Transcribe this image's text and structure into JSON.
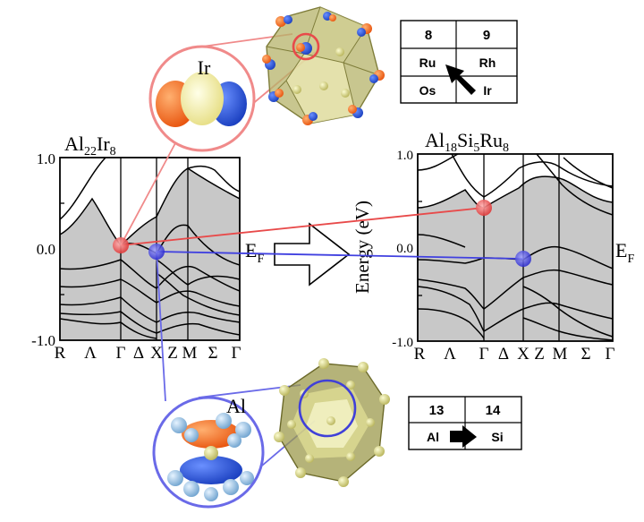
{
  "left_panel": {
    "title_main": "Al",
    "title_sub1": "22",
    "title_mid": "Ir",
    "title_sub2": "8",
    "y_ticks": [
      "1.0",
      "0.0",
      "-1.0"
    ],
    "k_labels": [
      "R",
      "Λ",
      "Γ",
      "Δ",
      "X",
      "Z",
      "M",
      "Σ",
      "Γ"
    ]
  },
  "right_panel": {
    "title_a": "Al",
    "title_a_sub": "18",
    "title_b": "Si",
    "title_b_sub": "5",
    "title_c": "Ru",
    "title_c_sub": "8",
    "y_ticks": [
      "1.0",
      "0.0",
      "-1.0"
    ],
    "k_labels": [
      "R",
      "Λ",
      "Γ",
      "Δ",
      "X",
      "Z",
      "M",
      "Σ",
      "Γ"
    ],
    "ylabel": "Energy (eV)"
  },
  "fermi_left": {
    "main": "E",
    "sub": "F"
  },
  "fermi_right": {
    "main": "E",
    "sub": "F"
  },
  "zoom_ir_label": "Ir",
  "zoom_al_label": "Al",
  "periodic_top": {
    "headers": [
      "8",
      "9"
    ],
    "rows": [
      [
        "Ru",
        "Rh"
      ],
      [
        "Os",
        "Ir"
      ]
    ]
  },
  "periodic_bottom": {
    "headers": [
      "13",
      "14"
    ],
    "rows": [
      [
        "Al",
        "Si"
      ]
    ]
  },
  "colors": {
    "red_highlight": "#e84a4a",
    "blue_highlight": "#3a3ad8",
    "band_fill": "#c8c8c8",
    "cluster_olive": "#9c9a4c",
    "orbital_orange": "#ef6a1a",
    "orbital_blue": "#2a55d6",
    "orbital_yellow": "#f5f0b0",
    "atom_lightblue": "#9cc6e6"
  }
}
